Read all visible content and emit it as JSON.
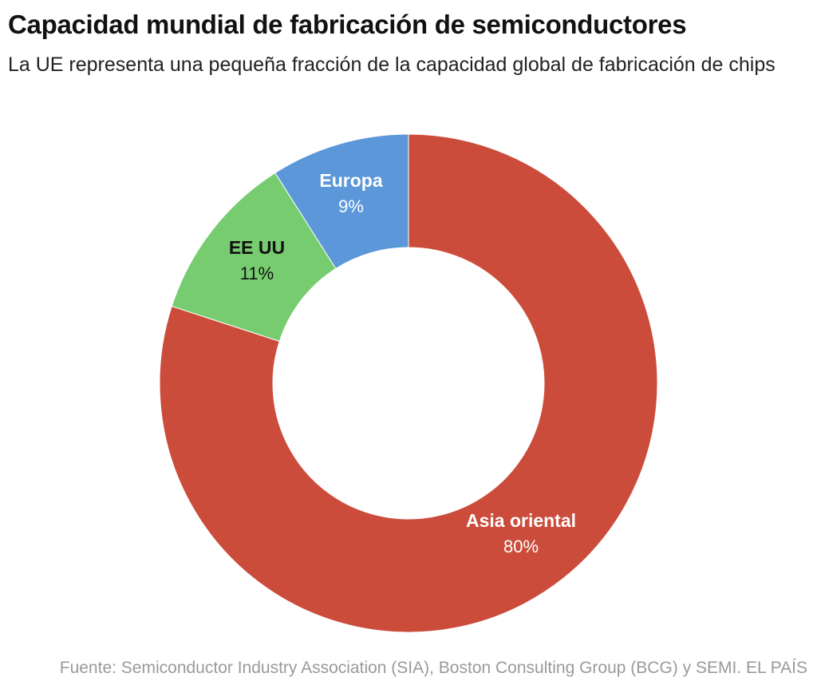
{
  "header": {
    "title": "Capacidad mundial de fabricación de semiconductores",
    "subtitle": "La UE representa una pequeña fracción de la capacidad global de fabricación de chips"
  },
  "footer": {
    "source": "Fuente: Semiconductor Industry Association (SIA), Boston Consulting Group (BCG) y SEMI. EL PAÍS"
  },
  "chart_data": {
    "type": "pie",
    "variant": "donut",
    "title": "Capacidad mundial de fabricación de semiconductores",
    "subtitle": "La UE representa una pequeña fracción de la capacidad global de fabricación de chips",
    "slices": [
      {
        "label": "Asia oriental",
        "value": 80,
        "value_label": "80%",
        "color": "#cc4c3b",
        "label_color": "#ffffff"
      },
      {
        "label": "EE UU",
        "value": 11,
        "value_label": "11%",
        "color": "#77cc70",
        "label_color": "#111111"
      },
      {
        "label": "Europa",
        "value": 9,
        "value_label": "9%",
        "color": "#5b97d9",
        "label_color": "#ffffff"
      }
    ]
  }
}
